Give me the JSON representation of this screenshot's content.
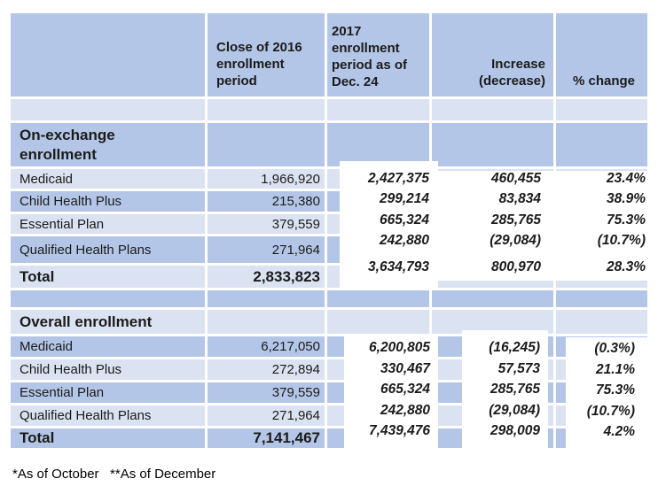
{
  "colors": {
    "band_dark": "#b4c6e7",
    "band_light": "#dbe2f1",
    "overlay_bg": "#ffffff",
    "text": "#1b1b1b"
  },
  "columns": {
    "close_2016": "Close of 2016 enrollment period",
    "period_2017": "2017 enrollment period as of Dec. 24",
    "increase": "Increase (decrease)",
    "pct_change": "% change"
  },
  "on_exchange": {
    "section_title": "On-exchange enrollment",
    "rows": [
      {
        "label": "Medicaid",
        "close_2016": "1,966,920",
        "period_2017": "2,427,375",
        "increase": "460,455",
        "pct_change": "23.4%"
      },
      {
        "label": "Child Health Plus",
        "close_2016": "215,380",
        "period_2017": "299,214",
        "increase": "83,834",
        "pct_change": "38.9%"
      },
      {
        "label": "Essential Plan",
        "close_2016": "379,559",
        "period_2017": "665,324",
        "increase": "285,765",
        "pct_change": "75.3%"
      },
      {
        "label": "Qualified Health Plans",
        "close_2016": "271,964",
        "period_2017": "242,880",
        "increase": "(29,084)",
        "pct_change": "(10.7%)"
      }
    ],
    "total": {
      "label": "Total",
      "close_2016": "2,833,823",
      "period_2017": "3,634,793",
      "increase": "800,970",
      "pct_change": "28.3%"
    }
  },
  "overall": {
    "section_title": "Overall enrollment",
    "rows": [
      {
        "label": "Medicaid",
        "close_2016": "6,217,050",
        "period_2017": "6,200,805",
        "increase": "(16,245)",
        "pct_change": "(0.3%)"
      },
      {
        "label": "Child Health Plus",
        "close_2016": "272,894",
        "period_2017": "330,467",
        "increase": "57,573",
        "pct_change": "21.1%"
      },
      {
        "label": "Essential Plan",
        "close_2016": "379,559",
        "period_2017": "665,324",
        "increase": "285,765",
        "pct_change": "75.3%"
      },
      {
        "label": "Qualified Health Plans",
        "close_2016": "271,964",
        "period_2017": "242,880",
        "increase": "(29,084)",
        "pct_change": "(10.7%)"
      }
    ],
    "total": {
      "label": "Total",
      "close_2016": "7,141,467",
      "period_2017": "7,439,476",
      "increase": "298,009",
      "pct_change": "4.2%"
    }
  },
  "footnote": "*As of October   **As of December"
}
